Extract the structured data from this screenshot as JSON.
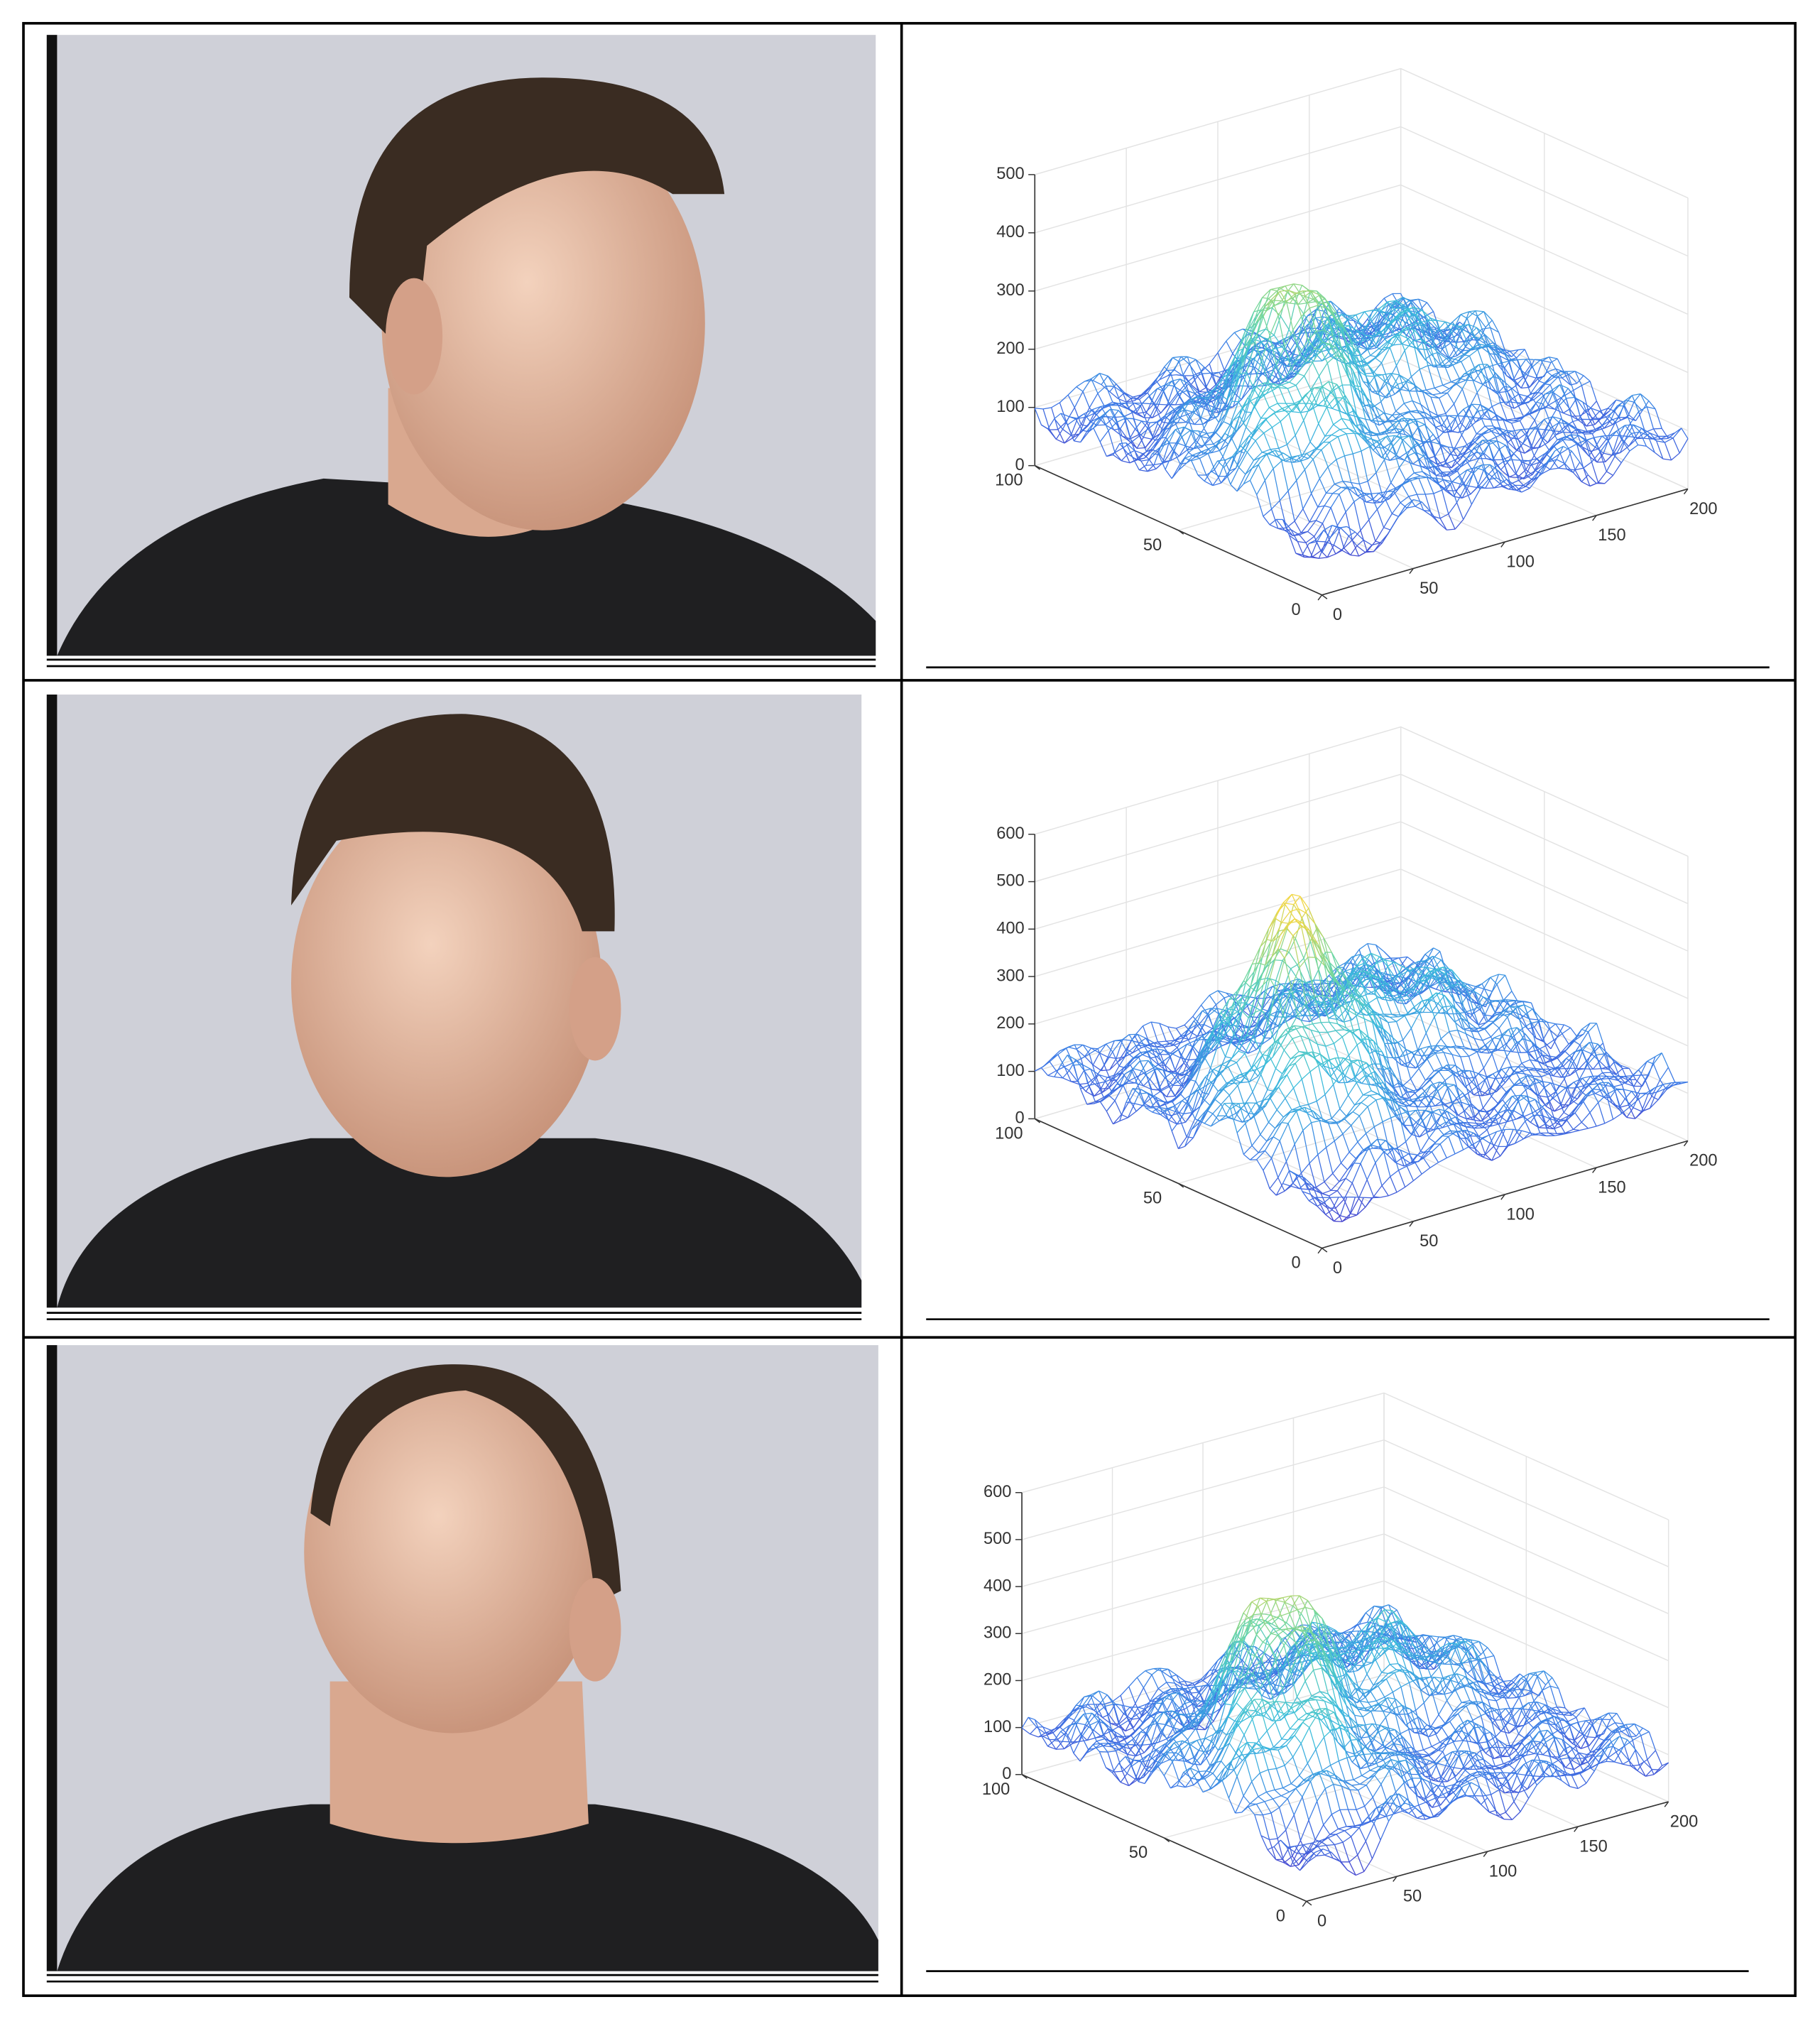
{
  "chart_data": [
    {
      "type": "surface",
      "zlim": [
        0,
        500
      ],
      "zticks": [
        0,
        100,
        200,
        300,
        400,
        500
      ],
      "xlim": [
        0,
        200
      ],
      "xticks": [
        0,
        50,
        100,
        150,
        200
      ],
      "ylim": [
        0,
        100
      ],
      "yticks": [
        0,
        50,
        100
      ]
    },
    {
      "type": "surface",
      "zlim": [
        0,
        600
      ],
      "zticks": [
        0,
        100,
        200,
        300,
        400,
        500,
        600
      ],
      "xlim": [
        0,
        200
      ],
      "xticks": [
        0,
        50,
        100,
        150,
        200
      ],
      "ylim": [
        0,
        100
      ],
      "yticks": [
        0,
        50,
        100
      ]
    },
    {
      "type": "surface",
      "zlim": [
        0,
        600
      ],
      "zticks": [
        0,
        100,
        200,
        300,
        400,
        500,
        600
      ],
      "xlim": [
        0,
        200
      ],
      "xticks": [
        0,
        50,
        100,
        150,
        200
      ],
      "ylim": [
        0,
        100
      ],
      "yticks": [
        0,
        50,
        100
      ]
    }
  ]
}
